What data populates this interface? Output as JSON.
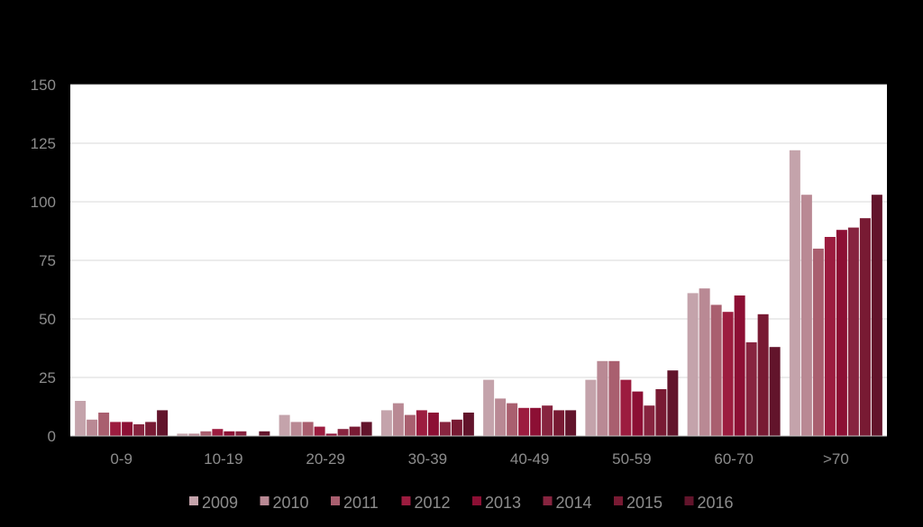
{
  "chart_data": {
    "type": "bar",
    "title": "",
    "xlabel": "",
    "ylabel": "",
    "ylim": [
      0,
      150
    ],
    "yticks": [
      0,
      25,
      50,
      75,
      100,
      125,
      150
    ],
    "grid": true,
    "legend_position": "bottom",
    "plot_background": "#ffffff",
    "page_background": "#000000",
    "categories": [
      "0-9",
      "10-19",
      "20-29",
      "30-39",
      "40-49",
      "50-59",
      "60-70",
      ">70"
    ],
    "series": [
      {
        "name": "2009",
        "color": "#c4a3ab",
        "values": [
          15,
          1,
          9,
          11,
          24,
          24,
          61,
          122
        ]
      },
      {
        "name": "2010",
        "color": "#b98994",
        "values": [
          7,
          1,
          6,
          14,
          16,
          32,
          63,
          103
        ]
      },
      {
        "name": "2011",
        "color": "#a95f6f",
        "values": [
          10,
          2,
          6,
          9,
          14,
          32,
          56,
          80
        ]
      },
      {
        "name": "2012",
        "color": "#9c1c3f",
        "values": [
          6,
          3,
          4,
          11,
          12,
          24,
          53,
          85
        ]
      },
      {
        "name": "2013",
        "color": "#8c0f34",
        "values": [
          6,
          2,
          1,
          10,
          12,
          19,
          60,
          88
        ]
      },
      {
        "name": "2014",
        "color": "#87243f",
        "values": [
          5,
          2,
          3,
          6,
          13,
          13,
          40,
          89
        ]
      },
      {
        "name": "2015",
        "color": "#781a33",
        "values": [
          6,
          0,
          4,
          7,
          11,
          20,
          52,
          93
        ]
      },
      {
        "name": "2016",
        "color": "#62142b",
        "values": [
          11,
          2,
          6,
          10,
          11,
          28,
          38,
          103
        ]
      }
    ]
  }
}
